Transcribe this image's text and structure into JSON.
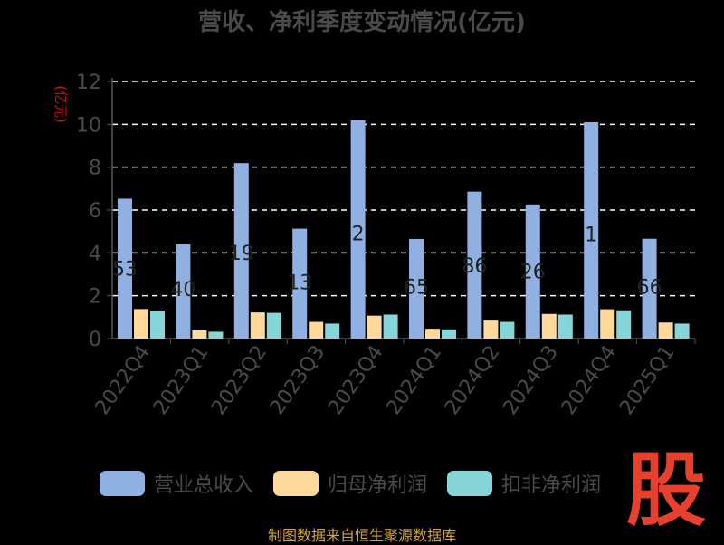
{
  "chart_data": {
    "type": "bar",
    "title": "营收、净利季度变动情况(亿元)",
    "ylabel": "(亿元)",
    "ylim": [
      0,
      12
    ],
    "yticks": [
      0,
      2,
      4,
      6,
      8,
      10,
      12
    ],
    "categories": [
      "2022Q4",
      "2023Q1",
      "2023Q2",
      "2023Q3",
      "2023Q4",
      "2024Q1",
      "2024Q2",
      "2024Q3",
      "2024Q4",
      "2025Q1"
    ],
    "series": [
      {
        "name": "营业总收入",
        "color": "#8fb0e0",
        "values": [
          6.53,
          4.4,
          8.19,
          5.13,
          10.2,
          4.65,
          6.86,
          6.26,
          10.1,
          4.66
        ]
      },
      {
        "name": "归母净利润",
        "color": "#ffd99b",
        "values": [
          1.38,
          0.38,
          1.22,
          0.78,
          1.07,
          0.46,
          0.84,
          1.15,
          1.37,
          0.75
        ]
      },
      {
        "name": "扣非净利润",
        "color": "#86d5d9",
        "values": [
          1.3,
          0.32,
          1.2,
          0.7,
          1.12,
          0.43,
          0.78,
          1.12,
          1.32,
          0.7
        ]
      }
    ],
    "data_labels": [
      "53",
      "40",
      "19",
      "13",
      "2",
      "65",
      "86",
      "26",
      "1",
      "66"
    ],
    "grid": true,
    "legend_position": "bottom"
  },
  "watermark": "股",
  "source": "制图数据来自恒生聚源数据库"
}
